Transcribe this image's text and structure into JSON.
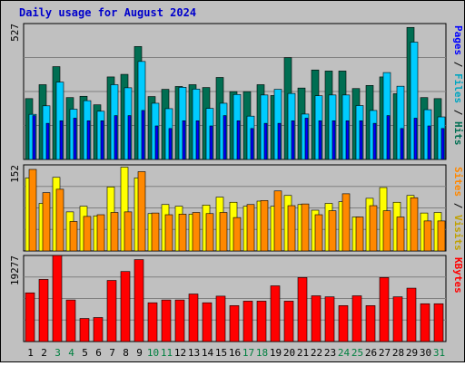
{
  "title": "Daily usage for August 2024",
  "colors": {
    "hits": "#006e52",
    "files": "#00ccff",
    "pages": "#0000ff",
    "visits": "#ffff00",
    "sites": "#ff8800",
    "kbytes": "#ff0000",
    "weekend": "#008040",
    "weekday": "#000000",
    "ylabel_hits": "#006e52",
    "ylabel_files": "#00a5c0",
    "ylabel_pages": "#0000ff",
    "ylabel_visits": "#c0a000",
    "ylabel_sites": "#ff8800",
    "ylabel_kbytes": "#ff0000"
  },
  "chart_data": [
    {
      "type": "bar",
      "panel": "hits_files_pages",
      "ylabel_parts": [
        "Pages",
        "Files",
        "Hits"
      ],
      "ymax_label": "527",
      "ylim": [
        0,
        527
      ],
      "categories": [
        "1",
        "2",
        "3",
        "4",
        "5",
        "6",
        "7",
        "8",
        "9",
        "10",
        "11",
        "12",
        "13",
        "14",
        "15",
        "16",
        "17",
        "18",
        "19",
        "20",
        "21",
        "22",
        "23",
        "24",
        "25",
        "26",
        "27",
        "28",
        "29",
        "30",
        "31"
      ],
      "weekend_days": [
        3,
        4,
        10,
        11,
        17,
        18,
        24,
        25,
        31
      ],
      "series": [
        {
          "name": "Hits",
          "values": [
            236,
            290,
            360,
            240,
            245,
            212,
            320,
            330,
            438,
            244,
            272,
            283,
            290,
            279,
            318,
            263,
            263,
            290,
            248,
            395,
            277,
            347,
            343,
            343,
            275,
            287,
            320,
            255,
            512,
            240,
            236
          ]
        },
        {
          "name": "Files",
          "values": [
            175,
            208,
            300,
            195,
            228,
            187,
            290,
            278,
            380,
            218,
            197,
            280,
            273,
            198,
            218,
            252,
            168,
            250,
            272,
            256,
            176,
            247,
            250,
            250,
            209,
            190,
            337,
            284,
            455,
            193,
            165
          ]
        },
        {
          "name": "Pages",
          "values": [
            170,
            140,
            150,
            160,
            150,
            150,
            170,
            170,
            190,
            130,
            120,
            150,
            150,
            130,
            170,
            150,
            120,
            140,
            140,
            150,
            160,
            150,
            150,
            150,
            150,
            140,
            170,
            120,
            160,
            130,
            120
          ]
        }
      ]
    },
    {
      "type": "bar",
      "panel": "visits_sites",
      "ylabel_parts": [
        "Sites",
        "Visits"
      ],
      "ymax_label": "152",
      "ylim": [
        0,
        152
      ],
      "categories": [
        "1",
        "2",
        "3",
        "4",
        "5",
        "6",
        "7",
        "8",
        "9",
        "10",
        "11",
        "12",
        "13",
        "14",
        "15",
        "16",
        "17",
        "18",
        "19",
        "20",
        "21",
        "22",
        "23",
        "24",
        "25",
        "26",
        "27",
        "28",
        "29",
        "30",
        "31"
      ],
      "weekend_days": [
        3,
        4,
        10,
        11,
        17,
        18,
        24,
        25,
        31
      ],
      "series": [
        {
          "name": "Visits",
          "values": [
            129,
            84,
            130,
            69,
            79,
            62,
            113,
            148,
            129,
            66,
            82,
            79,
            65,
            81,
            95,
            86,
            79,
            88,
            79,
            98,
            82,
            72,
            84,
            87,
            60,
            93,
            112,
            86,
            98,
            67,
            68
          ]
        },
        {
          "name": "Sites",
          "values": [
            144,
            103,
            109,
            52,
            61,
            64,
            68,
            69,
            140,
            67,
            64,
            65,
            68,
            66,
            68,
            59,
            82,
            89,
            106,
            80,
            83,
            64,
            71,
            101,
            60,
            80,
            71,
            60,
            94,
            53,
            53
          ]
        }
      ]
    },
    {
      "type": "bar",
      "panel": "kbytes",
      "ylabel_parts": [
        "KBytes"
      ],
      "ymax_label": "19277",
      "ylim": [
        0,
        19277
      ],
      "categories": [
        "1",
        "2",
        "3",
        "4",
        "5",
        "6",
        "7",
        "8",
        "9",
        "10",
        "11",
        "12",
        "13",
        "14",
        "15",
        "16",
        "17",
        "18",
        "19",
        "20",
        "21",
        "22",
        "23",
        "24",
        "25",
        "26",
        "27",
        "28",
        "29",
        "30",
        "31"
      ],
      "weekend_days": [
        3,
        4,
        10,
        11,
        17,
        18,
        24,
        25,
        31
      ],
      "series": [
        {
          "name": "KBytes",
          "values": [
            10910,
            13920,
            19277,
            9310,
            5170,
            5380,
            13690,
            15690,
            18350,
            8690,
            9310,
            9310,
            10650,
            8690,
            10170,
            8050,
            9050,
            9050,
            12480,
            9050,
            14340,
            10250,
            10020,
            8050,
            10250,
            8050,
            14340,
            10020,
            11960,
            8470,
            8470
          ]
        }
      ]
    }
  ]
}
